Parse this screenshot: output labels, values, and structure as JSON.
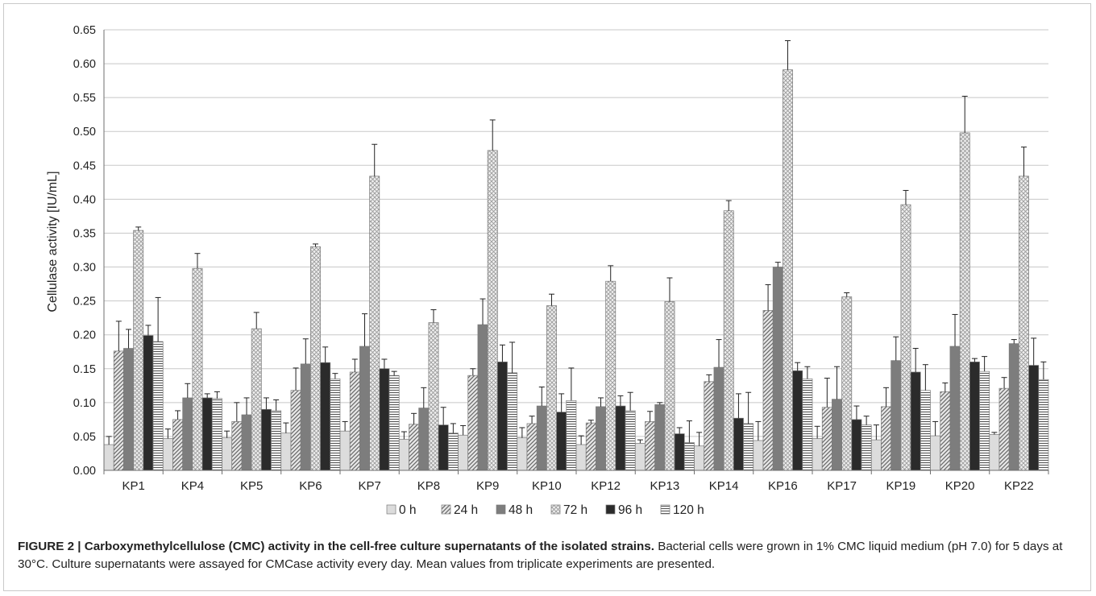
{
  "chart_data": {
    "type": "bar",
    "ylabel": "Cellulase activity [IU/mL]",
    "xlabel": "",
    "ylim": [
      0,
      0.65
    ],
    "ytick_step": 0.05,
    "grid": true,
    "legend_position": "bottom",
    "categories": [
      "KP1",
      "KP4",
      "KP5",
      "KP6",
      "KP7",
      "KP8",
      "KP9",
      "KP10",
      "KP12",
      "KP13",
      "KP14",
      "KP16",
      "KP17",
      "KP19",
      "KP20",
      "KP22"
    ],
    "series": [
      {
        "name": "0 h",
        "pattern": "light",
        "values": [
          0.038,
          0.047,
          0.048,
          0.055,
          0.058,
          0.046,
          0.052,
          0.048,
          0.038,
          0.04,
          0.036,
          0.044,
          0.047,
          0.045,
          0.051,
          0.053
        ],
        "errors": [
          0.012,
          0.014,
          0.01,
          0.015,
          0.014,
          0.011,
          0.014,
          0.015,
          0.013,
          0.005,
          0.02,
          0.028,
          0.018,
          0.022,
          0.021,
          0.003
        ]
      },
      {
        "name": "24 h",
        "pattern": "diag",
        "values": [
          0.176,
          0.075,
          0.072,
          0.118,
          0.145,
          0.068,
          0.14,
          0.069,
          0.07,
          0.072,
          0.131,
          0.236,
          0.093,
          0.094,
          0.116,
          0.121
        ],
        "errors": [
          0.044,
          0.013,
          0.028,
          0.033,
          0.019,
          0.016,
          0.01,
          0.011,
          0.004,
          0.015,
          0.01,
          0.038,
          0.043,
          0.028,
          0.013,
          0.016
        ]
      },
      {
        "name": "48 h",
        "pattern": "gray",
        "values": [
          0.18,
          0.107,
          0.082,
          0.157,
          0.183,
          0.092,
          0.215,
          0.095,
          0.094,
          0.097,
          0.152,
          0.3,
          0.105,
          0.162,
          0.183,
          0.187
        ],
        "errors": [
          0.028,
          0.021,
          0.025,
          0.037,
          0.048,
          0.03,
          0.038,
          0.028,
          0.013,
          0.003,
          0.041,
          0.007,
          0.048,
          0.035,
          0.047,
          0.006
        ]
      },
      {
        "name": "72 h",
        "pattern": "cross",
        "values": [
          0.354,
          0.298,
          0.209,
          0.33,
          0.434,
          0.218,
          0.472,
          0.243,
          0.279,
          0.249,
          0.383,
          0.591,
          0.256,
          0.392,
          0.498,
          0.434
        ],
        "errors": [
          0.005,
          0.022,
          0.024,
          0.004,
          0.047,
          0.019,
          0.045,
          0.017,
          0.023,
          0.035,
          0.015,
          0.043,
          0.006,
          0.021,
          0.054,
          0.043
        ]
      },
      {
        "name": "96 h",
        "pattern": "dark",
        "values": [
          0.199,
          0.107,
          0.09,
          0.159,
          0.15,
          0.067,
          0.16,
          0.086,
          0.095,
          0.054,
          0.077,
          0.147,
          0.075,
          0.145,
          0.16,
          0.155
        ],
        "errors": [
          0.015,
          0.006,
          0.017,
          0.023,
          0.014,
          0.026,
          0.025,
          0.027,
          0.015,
          0.009,
          0.036,
          0.012,
          0.02,
          0.035,
          0.005,
          0.04
        ]
      },
      {
        "name": "120 h",
        "pattern": "horiz",
        "values": [
          0.19,
          0.106,
          0.088,
          0.135,
          0.14,
          0.055,
          0.144,
          0.103,
          0.088,
          0.041,
          0.069,
          0.135,
          0.067,
          0.118,
          0.146,
          0.134
        ],
        "errors": [
          0.065,
          0.01,
          0.016,
          0.008,
          0.006,
          0.014,
          0.045,
          0.048,
          0.027,
          0.032,
          0.046,
          0.018,
          0.013,
          0.038,
          0.022,
          0.026
        ]
      }
    ]
  },
  "caption": {
    "title": "FIGURE 2 | Carboxymethylcellulose (CMC) activity in the cell-free culture supernatants of the isolated strains.",
    "body": "Bacterial cells were grown in 1% CMC liquid medium (pH 7.0) for 5 days at 30°C. Culture supernatants were assayed for CMCase activity every day. Mean values from triplicate experiments are presented."
  },
  "colors": {
    "axis": "#6f6f6f",
    "grid": "#c8c8c8",
    "bar_outline": "#7a7a7a",
    "light": "#dcdcdc",
    "diag": "#9a9a9a",
    "gray": "#7d7d7d",
    "cross": "#c4c4c4",
    "dark": "#2b2b2b",
    "horiz": "#8c8c8c"
  }
}
